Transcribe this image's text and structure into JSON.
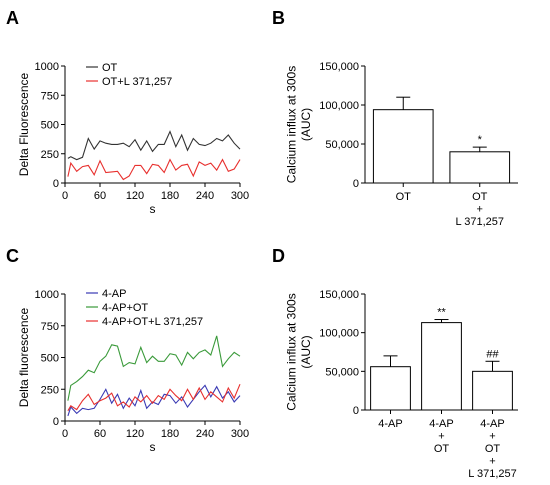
{
  "panels": [
    {
      "letter": "A"
    },
    {
      "letter": "B"
    },
    {
      "letter": "C"
    },
    {
      "letter": "D"
    }
  ],
  "chart_data": [
    {
      "type": "line",
      "panel": "A",
      "xlabel": "s",
      "ylabel": "Delta Fluorescence",
      "xlim": [
        0,
        300
      ],
      "ylim": [
        0,
        1000
      ],
      "xticks": [
        0,
        60,
        120,
        180,
        240,
        300
      ],
      "yticks": [
        0,
        250,
        500,
        750,
        1000
      ],
      "grid": false,
      "legend": "top-left",
      "x": [
        5,
        10,
        20,
        30,
        40,
        50,
        60,
        70,
        80,
        90,
        100,
        110,
        120,
        130,
        140,
        150,
        160,
        170,
        180,
        190,
        200,
        210,
        220,
        230,
        240,
        250,
        260,
        270,
        280,
        290,
        300
      ],
      "series": [
        {
          "name": "OT",
          "color": "#333333",
          "values": [
            210,
            225,
            200,
            220,
            380,
            290,
            360,
            340,
            330,
            330,
            340,
            310,
            370,
            280,
            360,
            270,
            330,
            330,
            440,
            310,
            410,
            280,
            380,
            330,
            320,
            340,
            380,
            360,
            410,
            340,
            290
          ]
        },
        {
          "name": "OT+L 371,257",
          "color": "#e8302e",
          "values": [
            55,
            170,
            100,
            140,
            150,
            70,
            190,
            90,
            95,
            100,
            30,
            60,
            150,
            150,
            80,
            160,
            150,
            90,
            200,
            110,
            150,
            160,
            60,
            180,
            150,
            170,
            110,
            200,
            100,
            120,
            200
          ]
        }
      ]
    },
    {
      "type": "bar",
      "panel": "B",
      "ylabel": "Calcium influx at 300s (AUC)",
      "ylim": [
        0,
        150000
      ],
      "yticks": [
        "0",
        "50,000",
        "100,000",
        "150,000"
      ],
      "categories": [
        {
          "lines": [
            "OT"
          ]
        },
        {
          "lines": [
            "OT",
            "+",
            "L 371,257"
          ]
        }
      ],
      "values": [
        94000,
        40000
      ],
      "errors": [
        16000,
        6000
      ],
      "annotations": [
        "",
        "*"
      ]
    },
    {
      "type": "line",
      "panel": "C",
      "xlabel": "s",
      "ylabel": "Delta fluorescence",
      "xlim": [
        0,
        300
      ],
      "ylim": [
        0,
        1000
      ],
      "xticks": [
        0,
        60,
        120,
        180,
        240,
        300
      ],
      "yticks": [
        0,
        250,
        500,
        750,
        1000
      ],
      "grid": false,
      "legend": "top-left",
      "x": [
        5,
        10,
        20,
        30,
        40,
        50,
        60,
        70,
        80,
        90,
        100,
        110,
        120,
        130,
        140,
        150,
        160,
        170,
        180,
        190,
        200,
        210,
        220,
        230,
        240,
        250,
        260,
        270,
        280,
        290,
        300
      ],
      "series": [
        {
          "name": "4-AP",
          "color": "#3a3ab4",
          "values": [
            40,
            110,
            60,
            100,
            90,
            100,
            170,
            250,
            140,
            210,
            100,
            180,
            120,
            240,
            100,
            150,
            130,
            210,
            200,
            140,
            190,
            110,
            170,
            230,
            280,
            190,
            270,
            180,
            230,
            150,
            200
          ]
        },
        {
          "name": "4-AP+OT",
          "color": "#3a9a3a",
          "values": [
            160,
            280,
            310,
            350,
            400,
            380,
            470,
            510,
            600,
            590,
            430,
            460,
            450,
            580,
            460,
            510,
            470,
            470,
            530,
            520,
            440,
            540,
            490,
            540,
            560,
            520,
            670,
            430,
            490,
            540,
            510
          ]
        },
        {
          "name": "4-AP+OT+L 371,257",
          "color": "#e8302e",
          "values": [
            80,
            120,
            90,
            160,
            210,
            130,
            160,
            180,
            220,
            120,
            150,
            110,
            190,
            150,
            200,
            140,
            200,
            170,
            250,
            200,
            160,
            250,
            170,
            260,
            170,
            230,
            190,
            150,
            260,
            180,
            290
          ]
        }
      ]
    },
    {
      "type": "bar",
      "panel": "D",
      "ylabel": "Calcium influx at 300s (AUC)",
      "ylim": [
        0,
        150000
      ],
      "yticks": [
        "0",
        "50,000",
        "100,000",
        "150,000"
      ],
      "categories": [
        {
          "lines": [
            "4-AP"
          ]
        },
        {
          "lines": [
            "4-AP",
            "+",
            "OT"
          ]
        },
        {
          "lines": [
            "4-AP",
            "+",
            "OT",
            "+",
            "L 371,257"
          ]
        }
      ],
      "values": [
        56000,
        113000,
        50000
      ],
      "errors": [
        14000,
        4000,
        13000
      ],
      "annotations": [
        "",
        "**",
        "##"
      ]
    }
  ]
}
